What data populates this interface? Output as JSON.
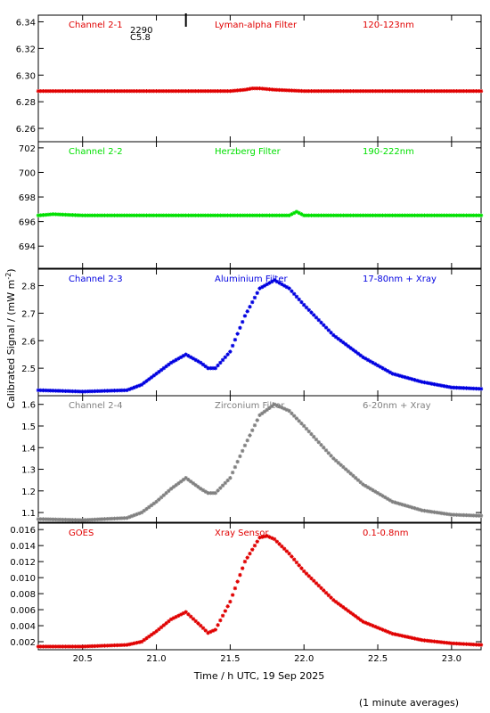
{
  "chart_data": [
    {
      "type": "line",
      "channel": "Channel 2-1",
      "filter": "Lyman-alpha Filter",
      "band": "120-123nm",
      "color": "#e00000",
      "ylim": [
        6.25,
        6.345
      ],
      "yticks": [
        "6.26",
        "6.28",
        "6.30",
        "6.32",
        "6.34"
      ],
      "series": [
        {
          "x": [
            20.2,
            21.0,
            21.5,
            21.6,
            21.65,
            21.7,
            21.8,
            22.0,
            22.5,
            23.2
          ],
          "y": [
            6.288,
            6.288,
            6.288,
            6.289,
            6.29,
            6.29,
            6.289,
            6.288,
            6.288,
            6.288
          ]
        }
      ],
      "annotation": {
        "text_top": "2290",
        "text_bottom": "C5.8",
        "x": 21.2
      }
    },
    {
      "type": "line",
      "channel": "Channel 2-2",
      "filter": "Herzberg Filter",
      "band": "190-222nm",
      "color": "#00e000",
      "ylim": [
        692.2,
        702.5
      ],
      "yticks": [
        "694",
        "696",
        "698",
        "700",
        "702"
      ],
      "series": [
        {
          "x": [
            20.2,
            20.3,
            20.5,
            21.0,
            21.5,
            21.9,
            21.95,
            22.0,
            22.5,
            23.2
          ],
          "y": [
            696.5,
            696.6,
            696.5,
            696.5,
            696.5,
            696.5,
            696.8,
            696.5,
            696.5,
            696.5
          ]
        }
      ]
    },
    {
      "type": "line",
      "channel": "Channel 2-3",
      "filter": "Aluminium Filter",
      "band": "17-80nm + Xray",
      "color": "#0000e0",
      "ylim": [
        2.4,
        2.86
      ],
      "yticks": [
        "2.5",
        "2.6",
        "2.7",
        "2.8"
      ],
      "series": [
        {
          "x": [
            20.2,
            20.5,
            20.8,
            20.9,
            21.0,
            21.1,
            21.2,
            21.3,
            21.35,
            21.4,
            21.5,
            21.6,
            21.7,
            21.8,
            21.9,
            22.0,
            22.2,
            22.4,
            22.6,
            22.8,
            23.0,
            23.2
          ],
          "y": [
            2.42,
            2.415,
            2.42,
            2.44,
            2.48,
            2.52,
            2.55,
            2.52,
            2.5,
            2.5,
            2.56,
            2.69,
            2.79,
            2.82,
            2.79,
            2.73,
            2.62,
            2.54,
            2.48,
            2.45,
            2.43,
            2.425
          ]
        }
      ]
    },
    {
      "type": "line",
      "channel": "Channel 2-4",
      "filter": "Zirconium Filter",
      "band": "6-20nm + Xray",
      "color": "#808080",
      "ylim": [
        1.055,
        1.64
      ],
      "yticks": [
        "1.1",
        "1.2",
        "1.3",
        "1.4",
        "1.5",
        "1.6"
      ],
      "series": [
        {
          "x": [
            20.2,
            20.5,
            20.8,
            20.9,
            21.0,
            21.1,
            21.2,
            21.3,
            21.35,
            21.4,
            21.5,
            21.6,
            21.7,
            21.8,
            21.9,
            22.0,
            22.2,
            22.4,
            22.6,
            22.8,
            23.0,
            23.2
          ],
          "y": [
            1.07,
            1.065,
            1.075,
            1.1,
            1.15,
            1.21,
            1.26,
            1.21,
            1.19,
            1.19,
            1.26,
            1.41,
            1.55,
            1.6,
            1.57,
            1.5,
            1.35,
            1.23,
            1.15,
            1.11,
            1.09,
            1.085
          ]
        }
      ]
    },
    {
      "type": "line",
      "channel": "GOES",
      "filter": "Xray Sensor",
      "band": "0.1-0.8nm",
      "color": "#e00000",
      "ylim": [
        0.001,
        0.0168
      ],
      "yticks": [
        "0.002",
        "0.004",
        "0.006",
        "0.008",
        "0.010",
        "0.012",
        "0.014",
        "0.016"
      ],
      "series": [
        {
          "x": [
            20.2,
            20.5,
            20.8,
            20.9,
            21.0,
            21.1,
            21.2,
            21.3,
            21.35,
            21.4,
            21.5,
            21.6,
            21.7,
            21.75,
            21.8,
            21.9,
            22.0,
            22.2,
            22.4,
            22.6,
            22.8,
            23.0,
            23.2
          ],
          "y": [
            0.0014,
            0.0014,
            0.0016,
            0.002,
            0.0033,
            0.0048,
            0.0057,
            0.004,
            0.0031,
            0.0035,
            0.007,
            0.012,
            0.015,
            0.0152,
            0.0148,
            0.013,
            0.0108,
            0.0072,
            0.0045,
            0.003,
            0.0022,
            0.0018,
            0.0016
          ]
        }
      ]
    }
  ],
  "xaxis": {
    "xlim": [
      20.2,
      23.2
    ],
    "ticks": [
      "20.5",
      "21.0",
      "21.5",
      "22.0",
      "22.5",
      "23.0"
    ],
    "label": "Time / h UTC, 19 Sep 2025"
  },
  "ylabel": "Calibrated Signal / (mW m",
  "ylabel_sup": "-2",
  "ylabel_close": ")",
  "footer": "(1 minute averages)"
}
